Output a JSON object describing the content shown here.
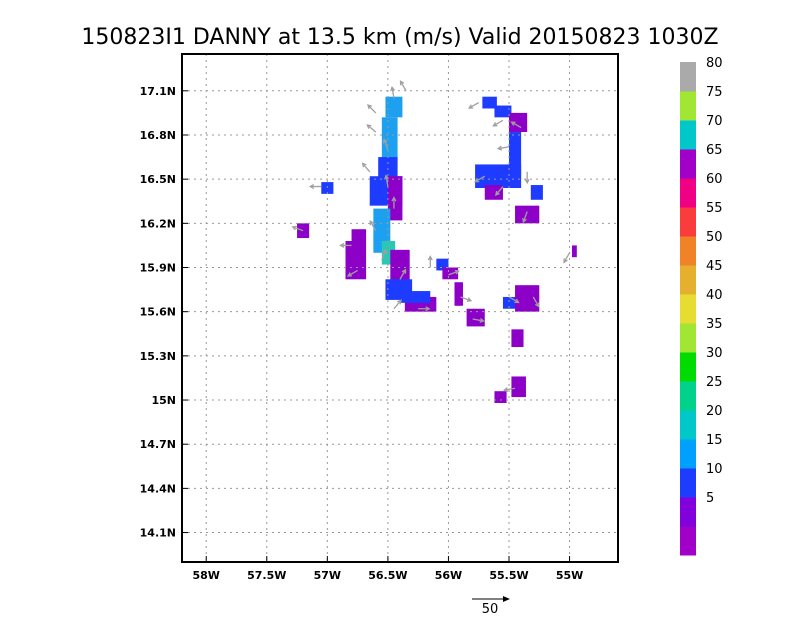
{
  "chart_data": {
    "type": "heatmap",
    "title": "150823I1 DANNY at 13.5 km (m/s) Valid 20150823 1030Z",
    "x_ticks": [
      {
        "value": -58.0,
        "label": "58W"
      },
      {
        "value": -57.5,
        "label": "57.5W"
      },
      {
        "value": -57.0,
        "label": "57W"
      },
      {
        "value": -56.5,
        "label": "56.5W"
      },
      {
        "value": -56.0,
        "label": "56W"
      },
      {
        "value": -55.5,
        "label": "55.5W"
      },
      {
        "value": -55.0,
        "label": "55W"
      }
    ],
    "y_ticks": [
      {
        "value": 17.1,
        "label": "17.1N"
      },
      {
        "value": 16.8,
        "label": "16.8N"
      },
      {
        "value": 16.5,
        "label": "16.5N"
      },
      {
        "value": 16.2,
        "label": "16.2N"
      },
      {
        "value": 15.9,
        "label": "15.9N"
      },
      {
        "value": 15.6,
        "label": "15.6N"
      },
      {
        "value": 15.3,
        "label": "15.3N"
      },
      {
        "value": 15.0,
        "label": "15N"
      },
      {
        "value": 14.7,
        "label": "14.7N"
      },
      {
        "value": 14.4,
        "label": "14.4N"
      },
      {
        "value": 14.1,
        "label": "14.1N"
      }
    ],
    "xlim": [
      -58.2,
      -54.6
    ],
    "ylim": [
      13.9,
      17.35
    ],
    "grid": true,
    "colorbar": {
      "levels": [
        {
          "label": "",
          "color": "#a000c8"
        },
        {
          "label": "5",
          "color": "#8200dc"
        },
        {
          "label": "10",
          "color": "#1e3cff"
        },
        {
          "label": "15",
          "color": "#00a0ff"
        },
        {
          "label": "20",
          "color": "#00c8c8"
        },
        {
          "label": "25",
          "color": "#00d28c"
        },
        {
          "label": "30",
          "color": "#00dc00"
        },
        {
          "label": "35",
          "color": "#a0e632"
        },
        {
          "label": "40",
          "color": "#e6dc32"
        },
        {
          "label": "45",
          "color": "#e6af2d"
        },
        {
          "label": "50",
          "color": "#f08228"
        },
        {
          "label": "55",
          "color": "#fa3c3c"
        },
        {
          "label": "60",
          "color": "#f00082"
        },
        {
          "label": "65",
          "color": "#a000c8"
        },
        {
          "label": "70",
          "color": "#00c8c8"
        },
        {
          "label": "75",
          "color": "#a0e632"
        },
        {
          "label": "80",
          "color": "#aaaaaa"
        }
      ]
    },
    "reference_vector": {
      "label": "50"
    },
    "cells": [
      {
        "lon": -56.52,
        "lat": 16.92,
        "lon2": -56.38,
        "lat2": 17.06,
        "speed": 15
      },
      {
        "lon": -56.55,
        "lat": 16.62,
        "lon2": -56.42,
        "lat2": 16.92,
        "speed": 15
      },
      {
        "lon": -56.58,
        "lat": 16.5,
        "lon2": -56.42,
        "lat2": 16.65,
        "speed": 10
      },
      {
        "lon": -56.65,
        "lat": 16.32,
        "lon2": -56.38,
        "lat2": 16.52,
        "speed": 10
      },
      {
        "lon": -56.5,
        "lat": 16.22,
        "lon2": -56.38,
        "lat2": 16.52,
        "speed": 5
      },
      {
        "lon": -56.62,
        "lat": 16.0,
        "lon2": -56.48,
        "lat2": 16.3,
        "speed": 15
      },
      {
        "lon": -56.55,
        "lat": 15.92,
        "lon2": -56.44,
        "lat2": 16.08,
        "speed": 25
      },
      {
        "lon": -56.48,
        "lat": 15.78,
        "lon2": -56.32,
        "lat2": 16.02,
        "speed": 5
      },
      {
        "lon": -56.52,
        "lat": 15.68,
        "lon2": -56.3,
        "lat2": 15.82,
        "speed": 10
      },
      {
        "lon": -56.36,
        "lat": 15.6,
        "lon2": -56.1,
        "lat2": 15.7,
        "speed": 5
      },
      {
        "lon": -56.4,
        "lat": 15.66,
        "lon2": -56.15,
        "lat2": 15.74,
        "speed": 10
      },
      {
        "lon": -56.85,
        "lat": 15.82,
        "lon2": -56.68,
        "lat2": 16.08,
        "speed": 5
      },
      {
        "lon": -56.8,
        "lat": 16.08,
        "lon2": -56.68,
        "lat2": 16.16,
        "speed": 5
      },
      {
        "lon": -57.25,
        "lat": 16.1,
        "lon2": -57.15,
        "lat2": 16.2,
        "speed": 5
      },
      {
        "lon": -57.05,
        "lat": 16.4,
        "lon2": -56.95,
        "lat2": 16.48,
        "speed": 10
      },
      {
        "lon": -56.1,
        "lat": 15.88,
        "lon2": -56.0,
        "lat2": 15.96,
        "speed": 10
      },
      {
        "lon": -56.05,
        "lat": 15.82,
        "lon2": -55.92,
        "lat2": 15.9,
        "speed": 5
      },
      {
        "lon": -55.95,
        "lat": 15.64,
        "lon2": -55.88,
        "lat2": 15.8,
        "speed": 5
      },
      {
        "lon": -55.85,
        "lat": 15.5,
        "lon2": -55.7,
        "lat2": 15.62,
        "speed": 5
      },
      {
        "lon": -55.55,
        "lat": 15.62,
        "lon2": -55.38,
        "lat2": 15.7,
        "speed": 10
      },
      {
        "lon": -55.45,
        "lat": 15.6,
        "lon2": -55.25,
        "lat2": 15.78,
        "speed": 5
      },
      {
        "lon": -55.48,
        "lat": 15.36,
        "lon2": -55.38,
        "lat2": 15.48,
        "speed": 5
      },
      {
        "lon": -55.48,
        "lat": 15.02,
        "lon2": -55.36,
        "lat2": 15.16,
        "speed": 5
      },
      {
        "lon": -55.62,
        "lat": 14.98,
        "lon2": -55.52,
        "lat2": 15.06,
        "speed": 5
      },
      {
        "lon": -55.72,
        "lat": 16.98,
        "lon2": -55.6,
        "lat2": 17.06,
        "speed": 10
      },
      {
        "lon": -55.62,
        "lat": 16.92,
        "lon2": -55.48,
        "lat2": 17.0,
        "speed": 10
      },
      {
        "lon": -55.5,
        "lat": 16.82,
        "lon2": -55.35,
        "lat2": 16.95,
        "speed": 5
      },
      {
        "lon": -55.5,
        "lat": 16.5,
        "lon2": -55.4,
        "lat2": 16.82,
        "speed": 10
      },
      {
        "lon": -55.78,
        "lat": 16.44,
        "lon2": -55.4,
        "lat2": 16.6,
        "speed": 10
      },
      {
        "lon": -55.7,
        "lat": 16.36,
        "lon2": -55.55,
        "lat2": 16.46,
        "speed": 5
      },
      {
        "lon": -55.32,
        "lat": 16.36,
        "lon2": -55.22,
        "lat2": 16.46,
        "speed": 10
      },
      {
        "lon": -55.45,
        "lat": 16.2,
        "lon2": -55.25,
        "lat2": 16.32,
        "speed": 5
      },
      {
        "lon": -54.98,
        "lat": 15.97,
        "lon2": -54.94,
        "lat2": 16.05,
        "speed": 5
      }
    ],
    "vectors": [
      {
        "lon": -56.6,
        "lat": 16.95,
        "angle": -135
      },
      {
        "lon": -56.45,
        "lat": 17.05,
        "angle": -100
      },
      {
        "lon": -56.35,
        "lat": 17.1,
        "angle": -120
      },
      {
        "lon": -56.6,
        "lat": 16.82,
        "angle": -140
      },
      {
        "lon": -56.5,
        "lat": 16.7,
        "angle": -110
      },
      {
        "lon": -56.65,
        "lat": 16.55,
        "angle": -130
      },
      {
        "lon": -56.5,
        "lat": 16.45,
        "angle": -100
      },
      {
        "lon": -56.45,
        "lat": 16.3,
        "angle": -90
      },
      {
        "lon": -56.6,
        "lat": 16.15,
        "angle": -120
      },
      {
        "lon": -56.55,
        "lat": 15.95,
        "angle": -70
      },
      {
        "lon": -56.4,
        "lat": 15.82,
        "angle": -60
      },
      {
        "lon": -56.45,
        "lat": 15.62,
        "angle": -50
      },
      {
        "lon": -56.25,
        "lat": 15.62,
        "angle": 0
      },
      {
        "lon": -56.15,
        "lat": 15.9,
        "angle": -90
      },
      {
        "lon": -56.0,
        "lat": 15.85,
        "angle": -20
      },
      {
        "lon": -55.9,
        "lat": 15.7,
        "angle": 20
      },
      {
        "lon": -55.8,
        "lat": 15.55,
        "angle": 10
      },
      {
        "lon": -56.8,
        "lat": 16.05,
        "angle": 180
      },
      {
        "lon": -56.75,
        "lat": 15.88,
        "angle": 150
      },
      {
        "lon": -57.2,
        "lat": 16.15,
        "angle": 200
      },
      {
        "lon": -57.05,
        "lat": 16.45,
        "angle": 180
      },
      {
        "lon": -55.75,
        "lat": 17.02,
        "angle": 150
      },
      {
        "lon": -55.55,
        "lat": 16.9,
        "angle": 150
      },
      {
        "lon": -55.4,
        "lat": 16.85,
        "angle": 210
      },
      {
        "lon": -55.5,
        "lat": 16.72,
        "angle": 170
      },
      {
        "lon": -55.7,
        "lat": 16.52,
        "angle": 150
      },
      {
        "lon": -55.55,
        "lat": 16.45,
        "angle": 130
      },
      {
        "lon": -55.35,
        "lat": 16.55,
        "angle": 90
      },
      {
        "lon": -55.35,
        "lat": 16.28,
        "angle": 110
      },
      {
        "lon": -55.5,
        "lat": 15.7,
        "angle": 30
      },
      {
        "lon": -55.3,
        "lat": 15.7,
        "angle": 60
      },
      {
        "lon": -55.0,
        "lat": 16.0,
        "angle": 120
      },
      {
        "lon": -55.45,
        "lat": 15.08,
        "angle": 170
      }
    ]
  }
}
